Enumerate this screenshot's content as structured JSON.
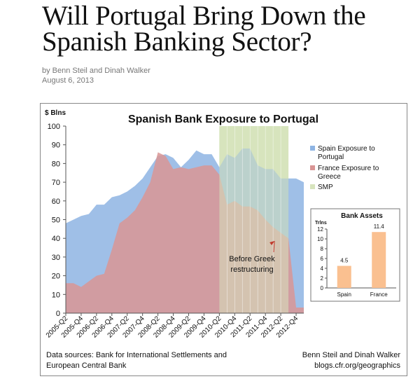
{
  "article": {
    "title": "Will Portugal Bring Down the Spanish Banking Sector?",
    "byline": "by Benn Steil and Dinah Walker",
    "date": "August 6, 2013"
  },
  "chart_data": [
    {
      "type": "area",
      "title": "Spanish Bank Exposure to Portugal",
      "ylabel": "$ Blns",
      "ylim": [
        0,
        100
      ],
      "yticks": [
        0,
        10,
        20,
        30,
        40,
        50,
        60,
        70,
        80,
        90,
        100
      ],
      "categories": [
        "2005-Q2",
        "2005-Q3",
        "2005-Q4",
        "2006-Q1",
        "2006-Q2",
        "2006-Q3",
        "2006-Q4",
        "2007-Q1",
        "2007-Q2",
        "2007-Q3",
        "2007-Q4",
        "2008-Q1",
        "2008-Q2",
        "2008-Q3",
        "2008-Q4",
        "2009-Q1",
        "2009-Q2",
        "2009-Q3",
        "2009-Q4",
        "2010-Q1",
        "2010-Q2",
        "2010-Q3",
        "2010-Q4",
        "2011-Q1",
        "2011-Q2",
        "2011-Q3",
        "2011-Q4",
        "2012-Q1",
        "2012-Q2",
        "2012-Q3",
        "2012-Q4",
        "2013-Q1"
      ],
      "tick_labels": [
        "2005-Q2",
        "2005-Q4",
        "2006-Q2",
        "2006-Q4",
        "2007-Q2",
        "2007-Q4",
        "2008-Q2",
        "2008-Q4",
        "2009-Q2",
        "2009-Q4",
        "2010-Q2",
        "2010-Q4",
        "2011-Q2",
        "2011-Q4",
        "2012-Q2",
        "2012-Q4"
      ],
      "series": [
        {
          "name": "Spain Exposure to Portugal",
          "color": "#8eb4e3",
          "values": [
            48,
            50,
            52,
            53,
            58,
            58,
            62,
            63,
            65,
            68,
            72,
            78,
            84,
            85,
            83,
            78,
            82,
            87,
            85,
            85,
            78,
            85,
            83,
            88,
            88,
            79,
            77,
            77,
            72,
            72,
            72,
            70
          ]
        },
        {
          "name": "France Exposure to Greece",
          "color": "#d99594",
          "values": [
            16,
            16,
            14,
            17,
            20,
            21,
            34,
            48,
            51,
            55,
            62,
            70,
            86,
            84,
            77,
            78,
            77,
            78,
            79,
            79,
            74,
            58,
            60,
            57,
            57,
            55,
            50,
            46,
            43,
            40,
            3,
            3
          ]
        },
        {
          "name": "SMP",
          "color": "#d7e4bd",
          "range": [
            "2010-Q2",
            "2012-Q3"
          ]
        }
      ],
      "legend": "right",
      "annotation": {
        "text": "Before Greek restructuring",
        "target": "2012-Q1"
      }
    },
    {
      "type": "bar",
      "title": "Bank Assets",
      "ylabel": "Trlns",
      "ylim": [
        0,
        12
      ],
      "yticks": [
        0,
        2,
        4,
        6,
        8,
        10,
        12
      ],
      "categories": [
        "Spain",
        "France"
      ],
      "values": [
        4.5,
        11.4
      ],
      "color": "#fac090"
    }
  ],
  "footer": {
    "sources_1": "Data sources: Bank for International Settlements and",
    "sources_2": "European Central Bank",
    "credit_1": "Benn Steil and Dinah Walker",
    "credit_2": "blogs.cfr.org/geographics"
  }
}
